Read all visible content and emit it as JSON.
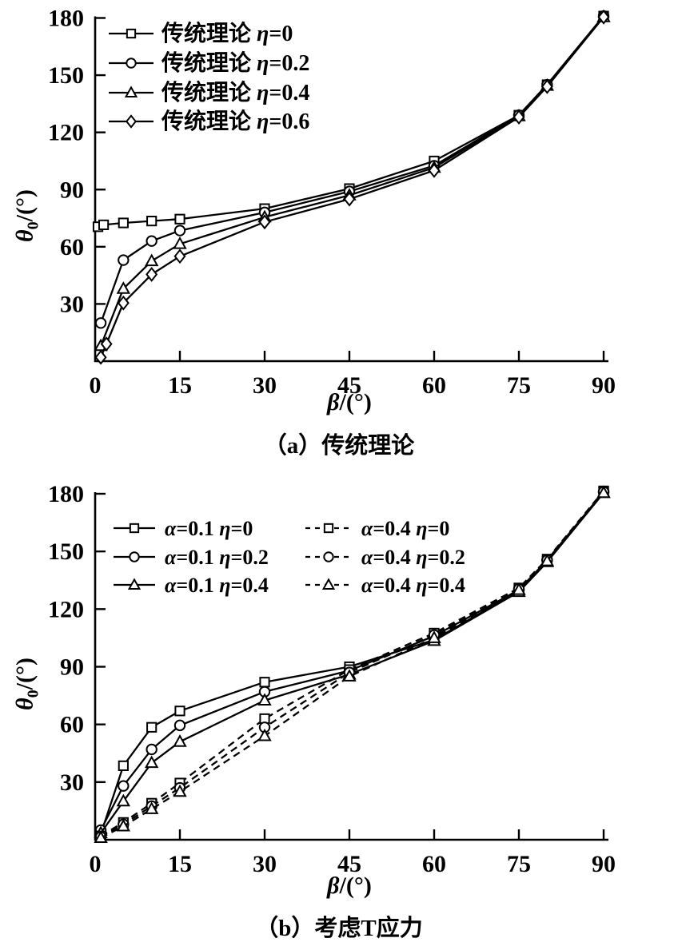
{
  "figure": {
    "background_color": "#ffffff",
    "ink_color": "#000000"
  },
  "chart_data": [
    {
      "type": "line",
      "caption": "（a）传统理论",
      "xlabel": {
        "symbol": "β",
        "unit": "/(°)"
      },
      "ylabel": {
        "symbol": "θ",
        "sub": "0",
        "unit": "/(°)"
      },
      "xlim": [
        0,
        90
      ],
      "ylim": [
        0,
        180
      ],
      "xticks": [
        0,
        15,
        30,
        45,
        60,
        75,
        90
      ],
      "yticks": [
        30,
        60,
        90,
        120,
        150,
        180
      ],
      "grid": false,
      "legend_position": "inside-top-left",
      "legend_columns": 1,
      "series": [
        {
          "id": "a-eta-0",
          "name": "传统理论 η=0",
          "marker": "square",
          "line": "solid",
          "x": [
            0.5,
            1.5,
            5,
            10,
            15,
            30,
            45,
            60,
            75,
            80,
            90
          ],
          "y": [
            70.5,
            71.5,
            72.5,
            73.5,
            74.5,
            80,
            90.5,
            105,
            129,
            145,
            181
          ]
        },
        {
          "id": "a-eta-02",
          "name": "传统理论 η=0.2",
          "marker": "circle",
          "line": "solid",
          "x": [
            1,
            5,
            10,
            15,
            30,
            45,
            60,
            75,
            80,
            90
          ],
          "y": [
            20,
            53,
            63,
            68.5,
            78,
            89,
            102.5,
            129,
            145,
            181
          ]
        },
        {
          "id": "a-eta-04",
          "name": "传统理论 η=0.4",
          "marker": "triangle",
          "line": "solid",
          "x": [
            1,
            5,
            10,
            15,
            30,
            45,
            60,
            75,
            80,
            90
          ],
          "y": [
            8,
            38,
            52.5,
            61.5,
            75.5,
            87,
            101.5,
            128.5,
            144.5,
            180.5
          ]
        },
        {
          "id": "a-eta-06",
          "name": "传统理论 η=0.6",
          "marker": "diamond",
          "line": "solid",
          "x": [
            1,
            2,
            5,
            10,
            15,
            30,
            45,
            60,
            75,
            80,
            90
          ],
          "y": [
            2,
            9,
            30.5,
            45.5,
            55,
            73,
            85,
            100,
            128,
            144,
            180.5
          ]
        }
      ]
    },
    {
      "type": "line",
      "caption": "（b）考虑T应力",
      "xlabel": {
        "symbol": "β",
        "unit": "/(°)"
      },
      "ylabel": {
        "symbol": "θ",
        "sub": "0",
        "unit": "/(°)"
      },
      "xlim": [
        0,
        90
      ],
      "ylim": [
        0,
        180
      ],
      "xticks": [
        0,
        15,
        30,
        45,
        60,
        75,
        90
      ],
      "yticks": [
        30,
        60,
        90,
        120,
        150,
        180
      ],
      "grid": false,
      "legend_position": "inside-top-left",
      "legend_columns": 2,
      "series": [
        {
          "id": "b-a01-eta-0",
          "name": "α=0.1 η=0",
          "marker": "square",
          "line": "solid",
          "x": [
            1,
            5,
            10,
            15,
            30,
            45,
            60,
            75,
            80,
            90
          ],
          "y": [
            3,
            38.5,
            58.5,
            67,
            82,
            90,
            104,
            129.5,
            145,
            181
          ]
        },
        {
          "id": "b-a01-eta-02",
          "name": "α=0.1 η=0.2",
          "marker": "circle",
          "line": "solid",
          "x": [
            1,
            5,
            10,
            15,
            30,
            45,
            60,
            75,
            80,
            90
          ],
          "y": [
            5,
            28,
            47,
            59.5,
            77,
            88,
            106,
            130,
            145.5,
            181
          ]
        },
        {
          "id": "b-a01-eta-04",
          "name": "α=0.1 η=0.4",
          "marker": "triangle",
          "line": "solid",
          "x": [
            1,
            5,
            10,
            15,
            30,
            45,
            60,
            75,
            80,
            90
          ],
          "y": [
            3.5,
            20,
            40,
            51,
            72.5,
            86,
            103.5,
            129,
            144.5,
            180.5
          ]
        },
        {
          "id": "b-a04-eta-0",
          "name": "α=0.4 η=0",
          "marker": "square",
          "line": "dashed",
          "x": [
            1,
            5,
            10,
            15,
            30,
            45,
            60,
            75,
            80,
            90
          ],
          "y": [
            2,
            9,
            19,
            29.5,
            63,
            88.5,
            107.5,
            131,
            146,
            181.5
          ]
        },
        {
          "id": "b-a04-eta-02",
          "name": "α=0.4 η=0.2",
          "marker": "circle",
          "line": "dashed",
          "x": [
            1,
            5,
            10,
            15,
            30,
            45,
            60,
            75,
            80,
            90
          ],
          "y": [
            1.5,
            8,
            17.5,
            27,
            58.5,
            87,
            106.5,
            130.5,
            145.5,
            181
          ]
        },
        {
          "id": "b-a04-eta-04",
          "name": "α=0.4 η=0.4",
          "marker": "triangle",
          "line": "dashed",
          "x": [
            1,
            5,
            10,
            15,
            30,
            45,
            60,
            75,
            80,
            90
          ],
          "y": [
            1,
            7,
            16,
            25,
            54,
            85,
            105,
            130,
            145,
            180.5
          ]
        }
      ]
    }
  ]
}
